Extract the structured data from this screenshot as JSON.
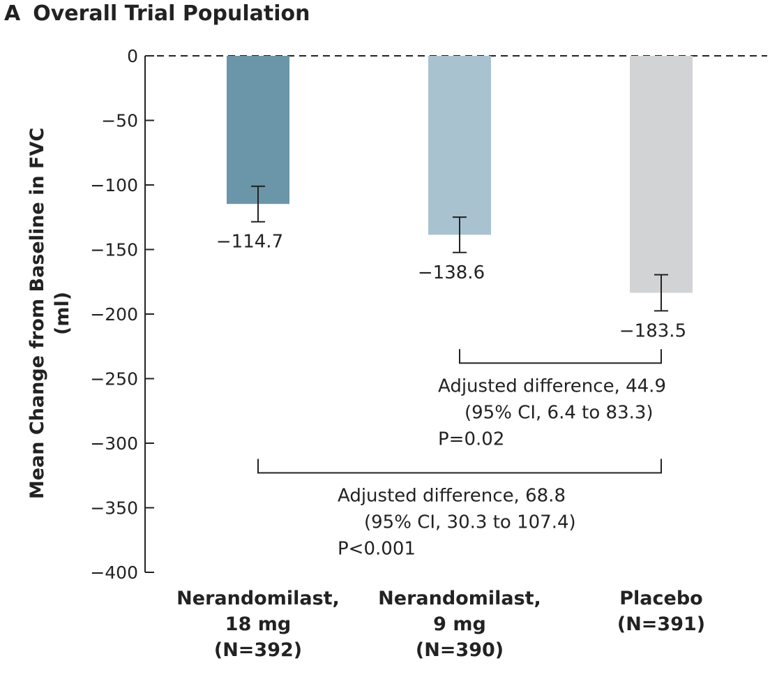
{
  "panel": {
    "letter": "A",
    "title": "Overall Trial Population"
  },
  "chart_data": {
    "type": "bar",
    "title": "Overall Trial Population",
    "ylabel_lines": [
      "Mean Change from Baseline in FVC",
      "(ml)"
    ],
    "ylim": [
      -400,
      0
    ],
    "yticks": [
      0,
      -50,
      -100,
      -150,
      -200,
      -250,
      -300,
      -350,
      -400
    ],
    "ytick_labels": [
      "0",
      "−50",
      "−100",
      "−150",
      "−200",
      "−250",
      "−300",
      "−350",
      "−400"
    ],
    "zero_line": "dashed",
    "grid": false,
    "categories": [
      [
        "Nerandomilast,",
        "18 mg",
        "(N=392)"
      ],
      [
        "Nerandomilast,",
        "9 mg",
        "(N=390)"
      ],
      [
        "Placebo",
        "(N=391)"
      ]
    ],
    "values": [
      -114.7,
      -138.6,
      -183.5
    ],
    "value_labels": [
      "−114.7",
      "−138.6",
      "−183.5"
    ],
    "error_bars": [
      [
        -128.5,
        -101.0
      ],
      [
        -152.3,
        -124.9
      ],
      [
        -197.5,
        -169.5
      ]
    ],
    "colors": [
      "#6b95a8",
      "#a9c2d0",
      "#d2d3d5"
    ],
    "comparisons": [
      {
        "from": 1,
        "to": 2,
        "y": -238,
        "lines": [
          "Adjusted difference, 44.9",
          "(95% CI, 6.4 to 83.3)",
          "P=0.02"
        ]
      },
      {
        "from": 0,
        "to": 2,
        "y": -323,
        "lines": [
          "Adjusted difference, 68.8",
          "(95% CI, 30.3 to 107.4)",
          "P<0.001"
        ]
      }
    ]
  }
}
